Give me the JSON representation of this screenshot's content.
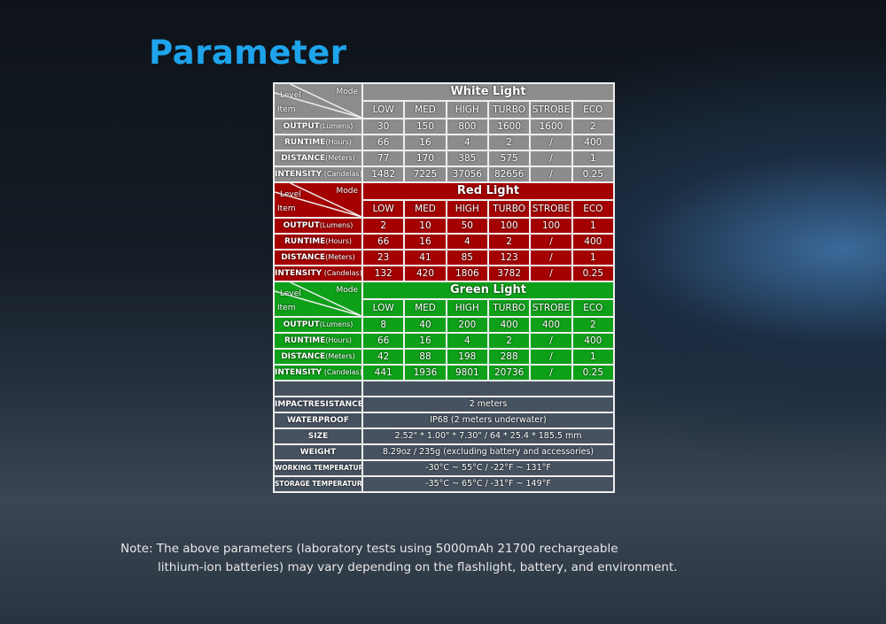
{
  "title": "Parameter",
  "corner": {
    "level": "Level",
    "mode": "Mode",
    "item": "Item"
  },
  "modes": [
    "LOW",
    "MED",
    "HIGH",
    "TURBO",
    "STROBE",
    "ECO"
  ],
  "sections": [
    {
      "name": "White Light",
      "rows": [
        {
          "label": "OUTPUT",
          "unit": "(Lumens)",
          "values": [
            "30",
            "150",
            "800",
            "1600",
            "1600",
            "2"
          ]
        },
        {
          "label": "RUNTIME",
          "unit": "(Hours)",
          "values": [
            "66",
            "16",
            "4",
            "2",
            "/",
            "400"
          ]
        },
        {
          "label": "DISTANCE",
          "unit": "(Meters)",
          "values": [
            "77",
            "170",
            "385",
            "575",
            "/",
            "1"
          ]
        },
        {
          "label": "INTENSITY",
          "unit": " (Candelas)",
          "values": [
            "1482",
            "7225",
            "37056",
            "82656",
            "/",
            "0.25"
          ]
        }
      ]
    },
    {
      "name": "Red Light",
      "rows": [
        {
          "label": "OUTPUT",
          "unit": "(Lumens)",
          "values": [
            "2",
            "10",
            "50",
            "100",
            "100",
            "1"
          ]
        },
        {
          "label": "RUNTIME",
          "unit": "(Hours)",
          "values": [
            "66",
            "16",
            "4",
            "2",
            "/",
            "400"
          ]
        },
        {
          "label": "DISTANCE",
          "unit": "(Meters)",
          "values": [
            "23",
            "41",
            "85",
            "123",
            "/",
            "1"
          ]
        },
        {
          "label": "INTENSITY",
          "unit": " (Candelas)",
          "values": [
            "132",
            "420",
            "1806",
            "3782",
            "/",
            "0.25"
          ]
        }
      ]
    },
    {
      "name": "Green Light",
      "rows": [
        {
          "label": "OUTPUT",
          "unit": "(Lumens)",
          "values": [
            "8",
            "40",
            "200",
            "400",
            "400",
            "2"
          ]
        },
        {
          "label": "RUNTIME",
          "unit": "(Hours)",
          "values": [
            "66",
            "16",
            "4",
            "2",
            "/",
            "400"
          ]
        },
        {
          "label": "DISTANCE",
          "unit": "(Meters)",
          "values": [
            "42",
            "88",
            "198",
            "288",
            "/",
            "1"
          ]
        },
        {
          "label": "INTENSITY",
          "unit": " (Candelas)",
          "values": [
            "441",
            "1936",
            "9801",
            "20736",
            "/",
            "0.25"
          ]
        }
      ]
    }
  ],
  "specs": [
    {
      "label": "IMPACTRESISTANCE",
      "value": "2 meters"
    },
    {
      "label": "WATERPROOF",
      "value": "IP68 (2 meters underwater)"
    },
    {
      "label": "SIZE",
      "value": "2.52\" * 1.00\" * 7.30\" / 64 * 25.4 * 185.5 mm"
    },
    {
      "label": "WEIGHT",
      "value": "8.29oz / 235g (excluding battery and accessories)"
    },
    {
      "label": "WORKING TEMPERATURE",
      "value": "-30°C ~ 55°C / -22°F ~ 131°F"
    },
    {
      "label": "STORAGE TEMPERATURE",
      "value": "-35°C ~ 65°C / -31°F ~ 149°F"
    }
  ],
  "note": {
    "line1": "Note: The above parameters (laboratory tests using 5000mAh 21700 rechargeable",
    "line2": "lithium-ion batteries) may vary depending on the flashlight, battery, and environment."
  },
  "colors": {
    "title": "#1ea4ec",
    "white_section": "#8c8c8c",
    "red_section": "#a40000",
    "green_section": "#0fa01a"
  }
}
